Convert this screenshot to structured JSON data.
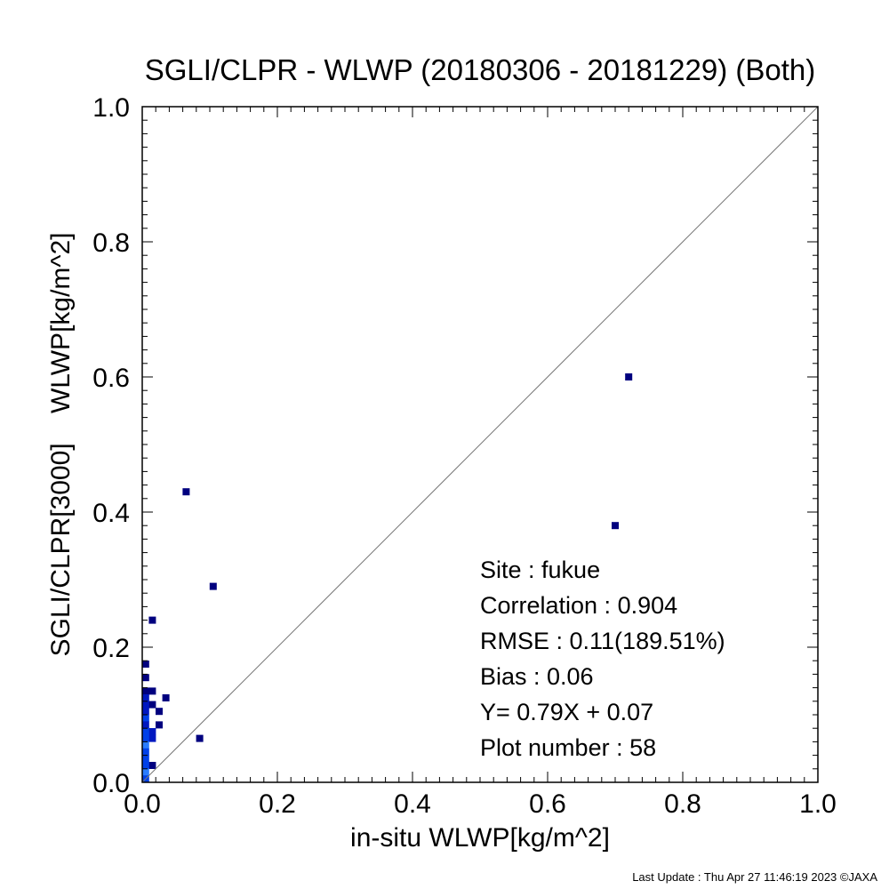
{
  "chart_data": {
    "type": "scatter",
    "title": "SGLI/CLPR - WLWP (20180306 - 20181229) (Both)",
    "xlabel": "in-situ WLWP[kg/m^2]",
    "ylabel": "SGLI/CLPR[3000]    WLWP[kg/m^2]",
    "xlim": [
      0.0,
      1.0
    ],
    "ylim": [
      0.0,
      1.0
    ],
    "xticks": [
      "0.0",
      "0.2",
      "0.4",
      "0.6",
      "0.8",
      "1.0"
    ],
    "yticks": [
      "0.0",
      "0.2",
      "0.4",
      "0.6",
      "0.8",
      "1.0"
    ],
    "identity_line": true,
    "grid": false,
    "stats": [
      "Site : fukue",
      "Correlation :    0.904",
      "RMSE :     0.11(189.51%)",
      "Bias :     0.06",
      "Y=   0.79X +    0.07",
      "Plot number :        58"
    ],
    "density_colors": [
      "#00007f",
      "#0018c0",
      "#0040e8",
      "#2a7cff"
    ],
    "points": [
      {
        "x": 0.72,
        "y": 0.6,
        "density": 0
      },
      {
        "x": 0.7,
        "y": 0.38,
        "density": 0
      },
      {
        "x": 0.065,
        "y": 0.43,
        "density": 0
      },
      {
        "x": 0.105,
        "y": 0.29,
        "density": 0
      },
      {
        "x": 0.015,
        "y": 0.24,
        "density": 0
      },
      {
        "x": 0.085,
        "y": 0.065,
        "density": 0
      },
      {
        "x": 0.035,
        "y": 0.125,
        "density": 0
      },
      {
        "x": 0.025,
        "y": 0.105,
        "density": 0
      },
      {
        "x": 0.025,
        "y": 0.085,
        "density": 0
      },
      {
        "x": 0.015,
        "y": 0.025,
        "density": 0
      },
      {
        "x": 0.015,
        "y": 0.115,
        "density": 0
      },
      {
        "x": 0.015,
        "y": 0.135,
        "density": 0
      },
      {
        "x": 0.015,
        "y": 0.075,
        "density": 1
      },
      {
        "x": 0.015,
        "y": 0.065,
        "density": 1
      },
      {
        "x": 0.005,
        "y": 0.175,
        "density": 0
      },
      {
        "x": 0.005,
        "y": 0.155,
        "density": 0
      },
      {
        "x": 0.005,
        "y": 0.135,
        "density": 0
      },
      {
        "x": 0.005,
        "y": 0.125,
        "density": 1
      },
      {
        "x": 0.005,
        "y": 0.115,
        "density": 1
      },
      {
        "x": 0.005,
        "y": 0.105,
        "density": 1
      },
      {
        "x": 0.005,
        "y": 0.095,
        "density": 2
      },
      {
        "x": 0.005,
        "y": 0.085,
        "density": 1
      },
      {
        "x": 0.005,
        "y": 0.075,
        "density": 2
      },
      {
        "x": 0.005,
        "y": 0.065,
        "density": 2
      },
      {
        "x": 0.005,
        "y": 0.055,
        "density": 3
      },
      {
        "x": 0.005,
        "y": 0.045,
        "density": 2
      },
      {
        "x": 0.005,
        "y": 0.035,
        "density": 2
      },
      {
        "x": 0.005,
        "y": 0.025,
        "density": 2
      },
      {
        "x": 0.005,
        "y": 0.015,
        "density": 3
      },
      {
        "x": 0.005,
        "y": 0.005,
        "density": 2
      }
    ]
  },
  "footer": "Last Update : Thu Apr 27 11:46:19 2023  ©JAXA"
}
